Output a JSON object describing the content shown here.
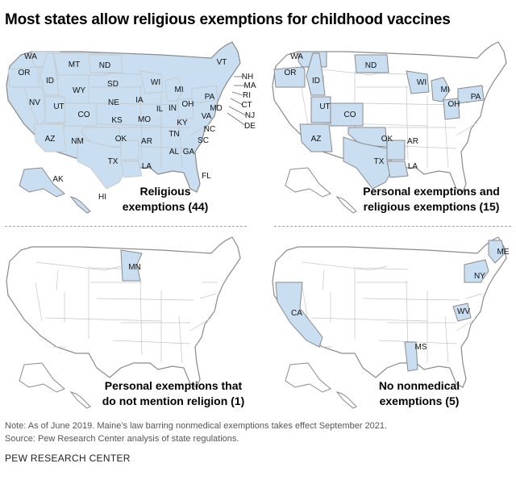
{
  "title": "Most states allow religious exemptions for childhood vaccines",
  "colors": {
    "fill": "#c9def1",
    "border": "#c4c4c4",
    "outline": "#8a8a8a"
  },
  "panels": [
    {
      "caption_line1": "Religious",
      "caption_line2": "exemptions (44)",
      "labels": [
        "WA",
        "OR",
        "ID",
        "MT",
        "ND",
        "SD",
        "WY",
        "NV",
        "UT",
        "CO",
        "NE",
        "KS",
        "AZ",
        "NM",
        "OK",
        "TX",
        "IA",
        "MO",
        "IL",
        "WI",
        "MI",
        "IN",
        "OH",
        "KY",
        "TN",
        "AR",
        "LA",
        "AL",
        "GA",
        "FL",
        "SC",
        "NC",
        "VA",
        "PA",
        "MD",
        "AK",
        "HI",
        "VT",
        "NH",
        "MA",
        "RI",
        "CT",
        "NJ",
        "DE"
      ]
    },
    {
      "caption_line1": "Personal exemptions and",
      "caption_line2": "religious exemptions (15)",
      "labels": [
        "WA",
        "OR",
        "ID",
        "ND",
        "UT",
        "CO",
        "AZ",
        "OK",
        "TX",
        "AR",
        "LA",
        "WI",
        "MI",
        "OH",
        "PA"
      ]
    },
    {
      "caption_line1": "Personal exemptions that",
      "caption_line2": "do not mention religion (1)",
      "labels": [
        "MN"
      ]
    },
    {
      "caption_line1": "No nonmedical",
      "caption_line2": "exemptions (5)",
      "labels": [
        "CA",
        "NY",
        "ME",
        "WV",
        "MS"
      ]
    }
  ],
  "note": "Note: As of June 2019. Maine’s law barring nonmedical exemptions takes effect September 2021.",
  "source": "Source: Pew Research Center analysis of state regulations.",
  "footer": "PEW RESEARCH CENTER"
}
